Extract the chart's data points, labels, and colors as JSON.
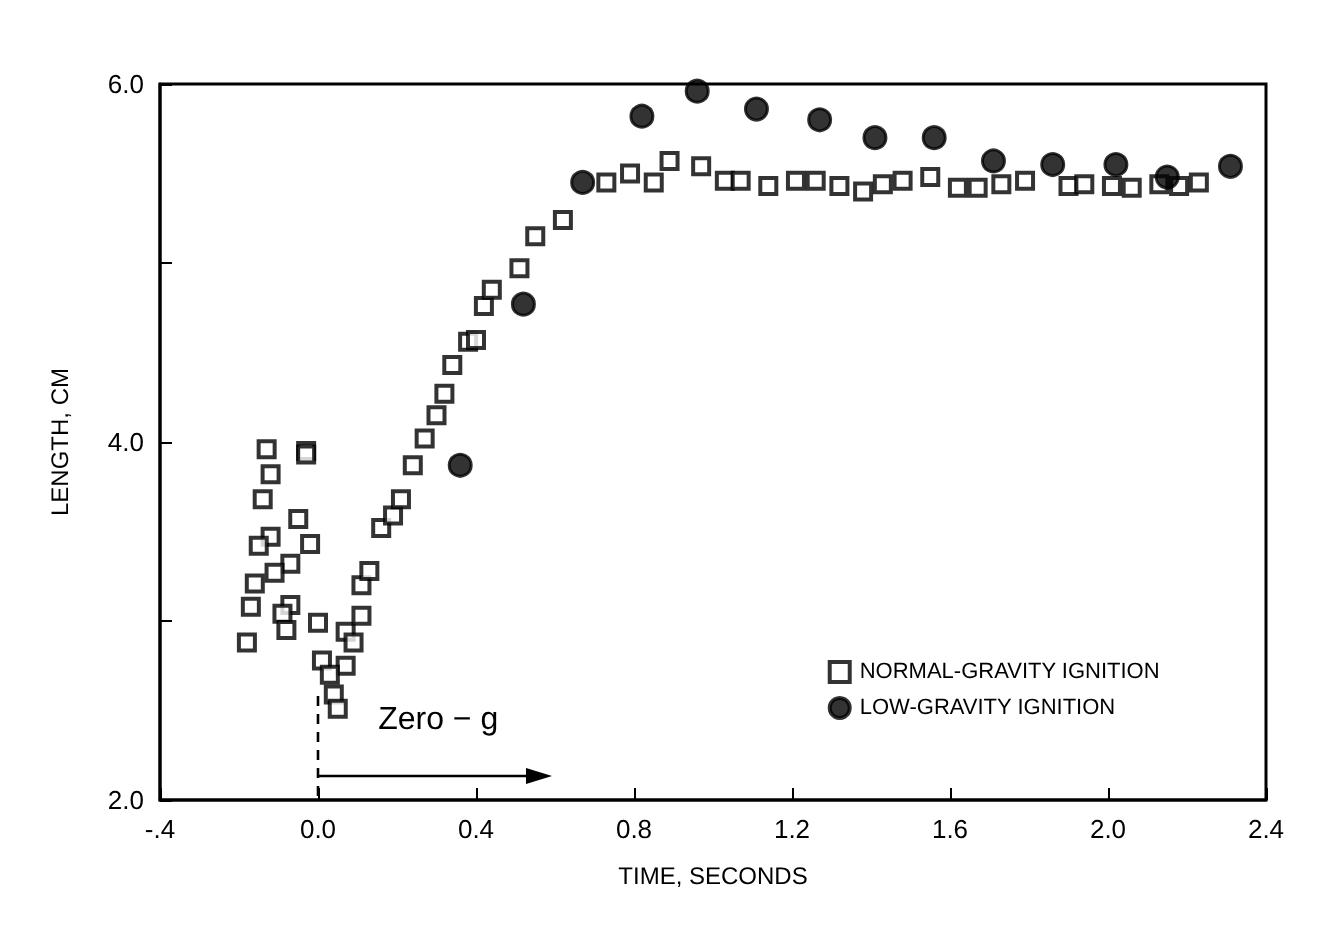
{
  "chart_data": {
    "type": "scatter",
    "xlabel": "TIME, SECONDS",
    "ylabel": "LENGTH, CM",
    "xlim": [
      -0.4,
      2.4
    ],
    "ylim": [
      2,
      6
    ],
    "xticks": [
      {
        "value": -0.4,
        "label": "-.4"
      },
      {
        "value": 0,
        "label": "0.0"
      },
      0.4,
      0.8,
      1.2,
      1.6,
      {
        "value": 2,
        "label": "2.0"
      },
      2.4
    ],
    "yticks": [
      {
        "value": 2,
        "label": "2.0"
      },
      {
        "value": 3,
        "label": null
      },
      {
        "value": 4,
        "label": "4.0"
      },
      {
        "value": 5,
        "label": null
      },
      {
        "value": 6,
        "label": "6.0"
      }
    ],
    "grid": false,
    "legend": "bottom right",
    "annotations": [
      "Zero − g"
    ],
    "series": [
      {
        "name": "NORMAL-GRAVITY IGNITION",
        "color": "#000000",
        "marker": "square",
        "x": [
          -0.13,
          -0.03,
          -0.03,
          -0.12,
          -0.14,
          -0.05,
          -0.12,
          -0.15,
          -0.02,
          -0.07,
          -0.11,
          -0.16,
          -0.07,
          -0.17,
          -0.09,
          -0.08,
          -0.18,
          0.0,
          0.01,
          0.07,
          0.03,
          0.04,
          0.05,
          0.07,
          0.09,
          0.11,
          0.11,
          0.13,
          0.16,
          0.19,
          0.21,
          0.24,
          0.27,
          0.3,
          0.32,
          0.34,
          0.38,
          0.4,
          0.42,
          0.44,
          0.51,
          0.55,
          0.62,
          0.73,
          0.79,
          0.85,
          0.89,
          0.97,
          1.03,
          1.07,
          1.14,
          1.21,
          1.26,
          1.32,
          1.38,
          1.43,
          1.48,
          1.55,
          1.62,
          1.67,
          1.73,
          1.79,
          1.9,
          1.94,
          2.01,
          2.06,
          2.13,
          2.18,
          2.23
        ],
        "values": [
          3.96,
          3.95,
          3.93,
          3.82,
          3.68,
          3.57,
          3.47,
          3.42,
          3.43,
          3.32,
          3.27,
          3.21,
          3.09,
          3.08,
          3.04,
          2.95,
          2.88,
          2.99,
          2.78,
          2.75,
          2.7,
          2.59,
          2.51,
          2.94,
          2.88,
          3.03,
          3.2,
          3.28,
          3.52,
          3.59,
          3.68,
          3.87,
          4.02,
          4.15,
          4.27,
          4.43,
          4.56,
          4.57,
          4.76,
          4.85,
          4.97,
          5.15,
          5.24,
          5.45,
          5.5,
          5.45,
          5.57,
          5.54,
          5.46,
          5.46,
          5.43,
          5.46,
          5.46,
          5.43,
          5.4,
          5.44,
          5.46,
          5.48,
          5.42,
          5.42,
          5.44,
          5.46,
          5.43,
          5.44,
          5.43,
          5.42,
          5.44,
          5.43,
          5.45
        ]
      },
      {
        "name": "LOW-GRAVITY IGNITION",
        "color": "#000000",
        "marker": "circle",
        "x": [
          0.36,
          0.52,
          0.67,
          0.82,
          0.96,
          1.11,
          1.27,
          1.41,
          1.56,
          1.71,
          1.86,
          2.02,
          2.15,
          2.31
        ],
        "values": [
          3.87,
          4.77,
          5.45,
          5.82,
          5.96,
          5.86,
          5.8,
          5.7,
          5.7,
          5.57,
          5.55,
          5.55,
          5.48,
          5.54
        ]
      }
    ]
  }
}
